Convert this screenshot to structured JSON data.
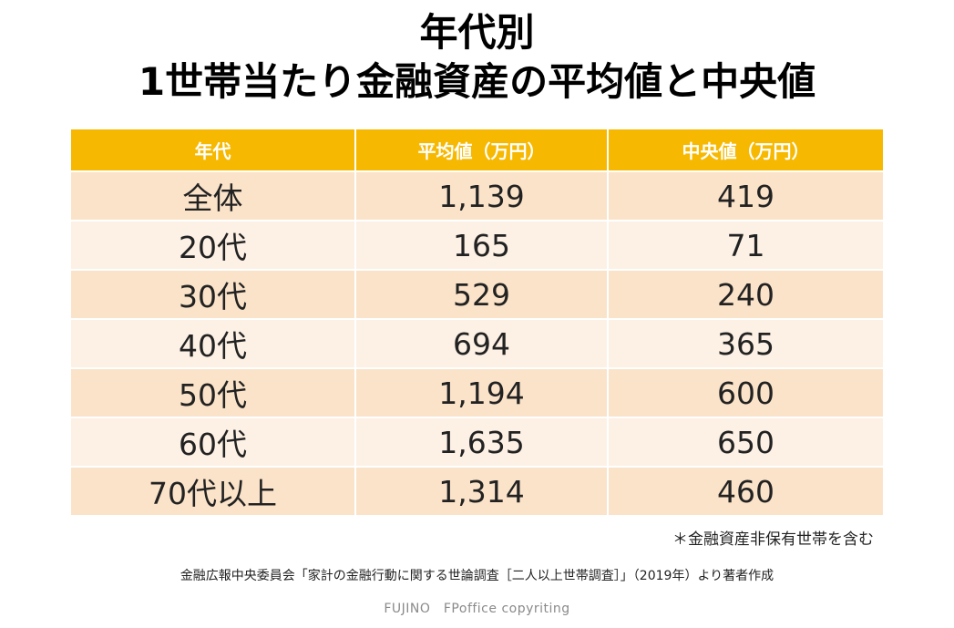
{
  "title": {
    "line1": "年代別",
    "line2": "1世帯当たり金融資産の平均値と中央値"
  },
  "table": {
    "headers": [
      "年代",
      "平均値（万円）",
      "中央値（万円）"
    ],
    "rows": [
      [
        "全体",
        "1,139",
        "419"
      ],
      [
        "20代",
        "165",
        "71"
      ],
      [
        "30代",
        "529",
        "240"
      ],
      [
        "40代",
        "694",
        "365"
      ],
      [
        "50代",
        "1,194",
        "600"
      ],
      [
        "60代",
        "1,635",
        "650"
      ],
      [
        "70代以上",
        "1,314",
        "460"
      ]
    ]
  },
  "note": "＊金融資産非保有世帯を含む",
  "source": "金融広報中央委員会「家計の金融行動に関する世論調査［二人以上世帯調査］」（2019年）より著者作成",
  "credit": "FUJINO　FPoffice copyriting",
  "colors": {
    "header_bg": "#f6b800",
    "row_odd": "#fbe3c9",
    "row_even": "#fdf1e5"
  }
}
